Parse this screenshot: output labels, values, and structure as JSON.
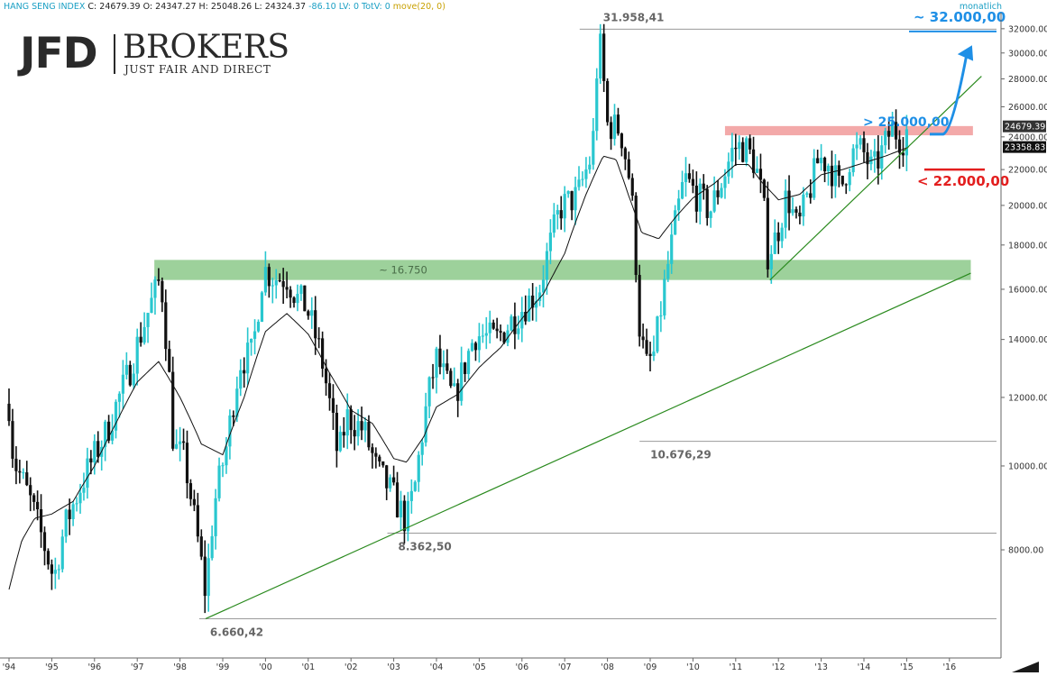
{
  "header": {
    "symbol": "HANG SENG INDEX",
    "ohlc": "C: 24679.39 O: 24347.27 H: 25048.26 L: 24324.37",
    "change": "-86.10",
    "lv": "LV: 0",
    "totv": "TotV: 0",
    "indicator": "move(20, 0)",
    "timeframe": "monatlich"
  },
  "logo": {
    "mark": "JFD",
    "name": "BROKERS",
    "tagline": "JUST FAIR AND DIRECT"
  },
  "colors": {
    "up": "#29c7cf",
    "down": "#111111",
    "trendline": "#2a8a1e",
    "support_zone": "#8cc98a",
    "resistance_zone": "#f19a9a",
    "target_up": "#1e8fe6",
    "target_down": "#e31e1e"
  },
  "chart_data": {
    "type": "candlestick",
    "ylim": [
      6000,
      33400
    ],
    "x_range": [
      1994.0,
      2016.75
    ],
    "x_ticks": [
      {
        "label": "'94",
        "x": 1994.0
      },
      {
        "label": "'95",
        "x": 1995.0
      },
      {
        "label": "'96",
        "x": 1996.0
      },
      {
        "label": "'97",
        "x": 1997.0
      },
      {
        "label": "'98",
        "x": 1998.0
      },
      {
        "label": "'99",
        "x": 1999.0
      },
      {
        "label": "'00",
        "x": 2000.0
      },
      {
        "label": "'01",
        "x": 2001.0
      },
      {
        "label": "'02",
        "x": 2002.0
      },
      {
        "label": "'03",
        "x": 2003.0
      },
      {
        "label": "'04",
        "x": 2004.0
      },
      {
        "label": "'05",
        "x": 2005.0
      },
      {
        "label": "'06",
        "x": 2006.0
      },
      {
        "label": "'07",
        "x": 2007.0
      },
      {
        "label": "'08",
        "x": 2008.0
      },
      {
        "label": "'09",
        "x": 2009.0
      },
      {
        "label": "'10",
        "x": 2010.0
      },
      {
        "label": "'11",
        "x": 2011.0
      },
      {
        "label": "'12",
        "x": 2012.0
      },
      {
        "label": "'13",
        "x": 2013.0
      },
      {
        "label": "'14",
        "x": 2014.0
      },
      {
        "label": "'15",
        "x": 2015.0
      },
      {
        "label": "'16",
        "x": 2016.0
      }
    ],
    "y_ticks": [
      {
        "value": 32000,
        "label": "32000.00"
      },
      {
        "value": 30000,
        "label": "30000.00"
      },
      {
        "value": 28000,
        "label": "28000.00"
      },
      {
        "value": 26000,
        "label": "26000.00"
      },
      {
        "value": 24000,
        "label": "24000.00"
      },
      {
        "value": 22000,
        "label": "22000.00"
      },
      {
        "value": 20000,
        "label": "20000.00"
      },
      {
        "value": 18000,
        "label": "18000.00"
      },
      {
        "value": 16000,
        "label": "16000.00"
      },
      {
        "value": 14000,
        "label": "14000.00"
      },
      {
        "value": 12000,
        "label": "12000.00"
      },
      {
        "value": 10000,
        "label": "10000.00"
      },
      {
        "value": 8000,
        "label": "8000.00"
      }
    ],
    "price_anchors": [
      [
        1994.0,
        11800
      ],
      [
        1994.1,
        10200
      ],
      [
        1994.5,
        9100
      ],
      [
        1995.05,
        7400
      ],
      [
        1995.3,
        8500
      ],
      [
        1995.8,
        9800
      ],
      [
        1996.3,
        11000
      ],
      [
        1996.8,
        12800
      ],
      [
        1997.2,
        14800
      ],
      [
        1997.55,
        16500
      ],
      [
        1997.75,
        12600
      ],
      [
        1997.85,
        10500
      ],
      [
        1998.1,
        10200
      ],
      [
        1998.35,
        8600
      ],
      [
        1998.6,
        7100
      ],
      [
        1998.8,
        9000
      ],
      [
        1999.1,
        10600
      ],
      [
        1999.4,
        13200
      ],
      [
        1999.7,
        13500
      ],
      [
        1999.95,
        16900
      ],
      [
        2000.2,
        16500
      ],
      [
        2000.5,
        16500
      ],
      [
        2000.75,
        15600
      ],
      [
        2000.95,
        15300
      ],
      [
        2001.3,
        13400
      ],
      [
        2001.7,
        10200
      ],
      [
        2001.9,
        11400
      ],
      [
        2002.3,
        11000
      ],
      [
        2002.6,
        9900
      ],
      [
        2002.9,
        9400
      ],
      [
        2003.3,
        8600
      ],
      [
        2003.5,
        9500
      ],
      [
        2003.8,
        12000
      ],
      [
        2004.0,
        13300
      ],
      [
        2004.4,
        11900
      ],
      [
        2004.9,
        14200
      ],
      [
        2005.4,
        14000
      ],
      [
        2005.9,
        15000
      ],
      [
        2006.4,
        16000
      ],
      [
        2006.9,
        19900
      ],
      [
        2007.3,
        20500
      ],
      [
        2007.65,
        23000
      ],
      [
        2007.8,
        31500
      ],
      [
        2008.0,
        24800
      ],
      [
        2008.3,
        24500
      ],
      [
        2008.55,
        21000
      ],
      [
        2008.75,
        14500
      ],
      [
        2008.9,
        13000
      ],
      [
        2009.1,
        13500
      ],
      [
        2009.5,
        18000
      ],
      [
        2009.8,
        21500
      ],
      [
        2010.1,
        20500
      ],
      [
        2010.4,
        19700
      ],
      [
        2010.7,
        21500
      ],
      [
        2010.95,
        23300
      ],
      [
        2011.2,
        23400
      ],
      [
        2011.45,
        22400
      ],
      [
        2011.65,
        20000
      ],
      [
        2011.75,
        17600
      ],
      [
        2011.95,
        18400
      ],
      [
        2012.2,
        20600
      ],
      [
        2012.45,
        18700
      ],
      [
        2012.75,
        21000
      ],
      [
        2012.95,
        22700
      ],
      [
        2013.2,
        22300
      ],
      [
        2013.45,
        20800
      ],
      [
        2013.7,
        22900
      ],
      [
        2013.95,
        23200
      ],
      [
        2014.2,
        21900
      ],
      [
        2014.45,
        23200
      ],
      [
        2014.65,
        24600
      ],
      [
        2014.9,
        23800
      ],
      [
        2015.05,
        24679
      ]
    ],
    "ma_anchors": [
      [
        1994.0,
        7200
      ],
      [
        1994.3,
        8200
      ],
      [
        1994.6,
        8700
      ],
      [
        1995.0,
        8800
      ],
      [
        1995.5,
        9100
      ],
      [
        1996.0,
        10000
      ],
      [
        1996.5,
        11200
      ],
      [
        1997.0,
        12500
      ],
      [
        1997.5,
        13200
      ],
      [
        1998.0,
        12000
      ],
      [
        1998.5,
        10600
      ],
      [
        1999.0,
        10300
      ],
      [
        1999.5,
        12000
      ],
      [
        2000.0,
        14300
      ],
      [
        2000.5,
        15000
      ],
      [
        2001.0,
        14200
      ],
      [
        2001.5,
        12800
      ],
      [
        2002.0,
        11600
      ],
      [
        2002.5,
        11200
      ],
      [
        2003.0,
        10200
      ],
      [
        2003.3,
        10100
      ],
      [
        2003.7,
        10800
      ],
      [
        2004.0,
        11700
      ],
      [
        2004.5,
        12100
      ],
      [
        2005.0,
        13000
      ],
      [
        2005.5,
        13700
      ],
      [
        2006.0,
        14800
      ],
      [
        2006.5,
        15800
      ],
      [
        2007.0,
        17600
      ],
      [
        2007.5,
        20600
      ],
      [
        2007.9,
        22800
      ],
      [
        2008.2,
        22600
      ],
      [
        2008.5,
        20500
      ],
      [
        2008.8,
        18600
      ],
      [
        2009.2,
        18300
      ],
      [
        2009.6,
        19400
      ],
      [
        2010.0,
        20400
      ],
      [
        2010.5,
        21200
      ],
      [
        2011.0,
        22300
      ],
      [
        2011.3,
        22300
      ],
      [
        2011.6,
        21300
      ],
      [
        2012.0,
        20300
      ],
      [
        2012.5,
        20600
      ],
      [
        2013.0,
        21700
      ],
      [
        2013.5,
        22000
      ],
      [
        2014.0,
        22400
      ],
      [
        2014.5,
        22800
      ],
      [
        2015.05,
        23358
      ]
    ],
    "price_labels": [
      {
        "text": "24679.39",
        "value": 24679.39,
        "style": "dark"
      },
      {
        "text": "23358.83",
        "value": 23358.83,
        "style": "black"
      }
    ],
    "annotations": {
      "level_lines": [
        {
          "label": "31.958,41",
          "value": 31958.41,
          "from": 2007.35
        },
        {
          "label": "10.676,29",
          "value": 10676.29,
          "from": 2008.75
        },
        {
          "label": "8.362,50",
          "value": 8362.5,
          "from": 2002.85
        },
        {
          "label": "6.660,42",
          "value": 6660.42,
          "from": 1998.45
        }
      ],
      "support_zone": {
        "label": "~ 16.750",
        "low": 16400,
        "high": 17300,
        "from": 1997.4,
        "to": 2016.5
      },
      "resistance_zone": {
        "label": "",
        "low": 24100,
        "high": 24700,
        "from": 2010.75,
        "to": 2016.55
      },
      "trendlines": [
        {
          "from": [
            1998.6,
            6660
          ],
          "to": [
            2016.5,
            16700
          ]
        },
        {
          "from": [
            2011.8,
            16400
          ],
          "to": [
            2016.75,
            28200
          ]
        }
      ],
      "targets": [
        {
          "label": "~ 32.000,00",
          "color": "up",
          "value": 32000
        },
        {
          "label": "> 25.000,00",
          "color": "up",
          "value": 25000
        },
        {
          "label": "< 22.000,00",
          "color": "down",
          "value": 22000
        }
      ]
    }
  }
}
